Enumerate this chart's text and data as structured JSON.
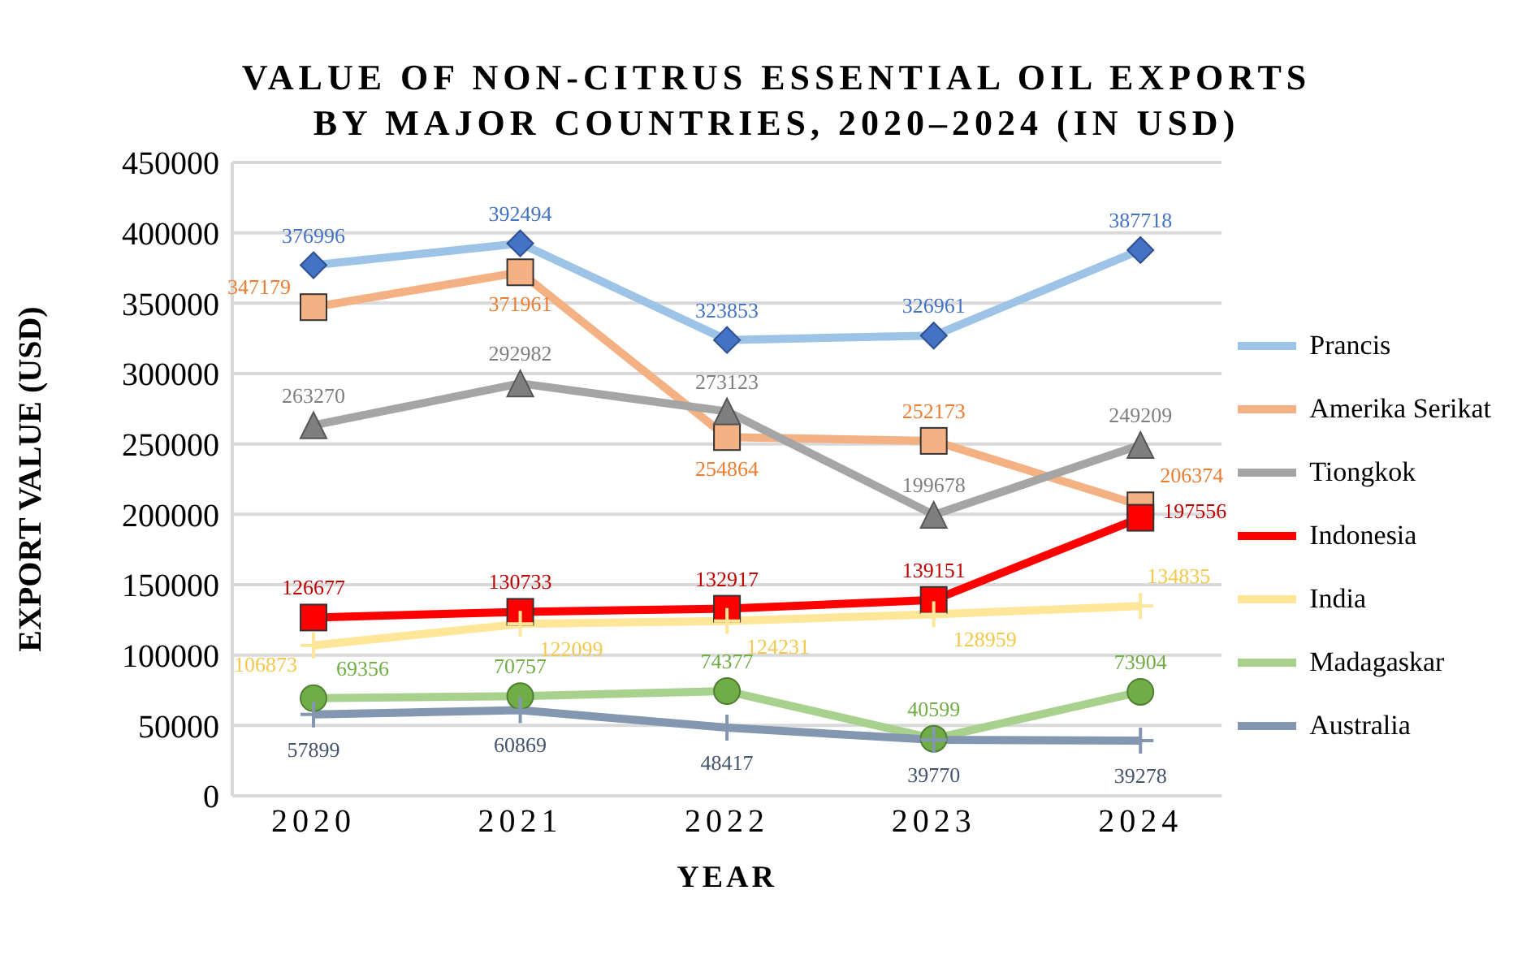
{
  "chart_data": {
    "type": "line",
    "title": "VALUE OF NON-CITRUS ESSENTIAL OIL EXPORTS\nBY MAJOR COUNTRIES, 2020–2024 (IN USD)",
    "xlabel": "YEAR",
    "ylabel": "EXPORT VALUE (USD)",
    "categories": [
      "2020",
      "2021",
      "2022",
      "2023",
      "2024"
    ],
    "ylim": [
      0,
      450000
    ],
    "yticks": [
      0,
      50000,
      100000,
      150000,
      200000,
      250000,
      300000,
      350000,
      400000,
      450000
    ],
    "grid": "y",
    "legend": "right",
    "data_labels": true,
    "series": [
      {
        "name": "Prancis",
        "color": "#9dc3e6",
        "marker": "diamond",
        "values": [
          376996,
          392494,
          323853,
          326961,
          387718
        ]
      },
      {
        "name": "Amerika Serikat",
        "color": "#f4b183",
        "marker": "square",
        "values": [
          347179,
          371961,
          254864,
          252173,
          206374
        ]
      },
      {
        "name": "Tiongkok",
        "color": "#a5a5a5",
        "marker": "triangle",
        "values": [
          263270,
          292982,
          273123,
          199678,
          249209
        ]
      },
      {
        "name": "Indonesia",
        "color": "#ff0000",
        "marker": "square",
        "values": [
          126677,
          130733,
          132917,
          139151,
          197556
        ]
      },
      {
        "name": "India",
        "color": "#ffe699",
        "marker": "cross",
        "values": [
          106873,
          122099,
          124231,
          128959,
          134835
        ]
      },
      {
        "name": "Madagaskar",
        "color": "#a9d18e",
        "marker": "circle",
        "values": [
          69356,
          70757,
          74377,
          40599,
          73904
        ]
      },
      {
        "name": "Australia",
        "color": "#8497b0",
        "marker": "cross",
        "values": [
          57899,
          60869,
          48417,
          39770,
          39278
        ]
      }
    ]
  }
}
